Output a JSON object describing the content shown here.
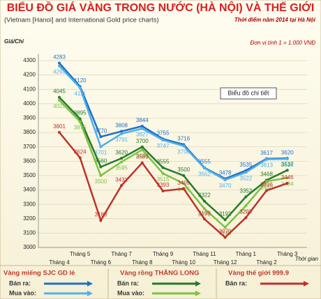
{
  "chart_data": {
    "type": "line",
    "title": "BIỂU ĐỒ GIÁ VÀNG TRONG NƯỚC (HÀ NỘI) VÀ THẾ GIỚI",
    "subtitle": "(Vietnam [Hanoi] and International Gold price charts)",
    "date_note": "Thời điểm năm 2014 tại Hà Nội",
    "unit_note": "Đơn vị tính 1 = 1.000 VNĐ",
    "button": "Biểu đồ chi tiết",
    "y_label": "Giá/Chỉ",
    "x_label": "Thời gian",
    "categories": [
      "Tháng 4",
      "Tháng 5",
      "Tháng 6",
      "Tháng 7",
      "Tháng 8",
      "Tháng 9",
      "Tháng 10",
      "Tháng 11",
      "Tháng 12",
      "Tháng 1",
      "Tháng 2",
      "Tháng 3"
    ],
    "ylim": [
      3000,
      4300
    ],
    "yticks": [
      3000,
      3100,
      3200,
      3300,
      3400,
      3500,
      3600,
      3700,
      3800,
      3900,
      4000,
      4100,
      4200,
      4300
    ],
    "grid": true,
    "groups": [
      {
        "title": "Vàng miếng SJC GD lẻ",
        "series": [
          {
            "name": "Bán ra:",
            "color": "#1f6fc8",
            "values": [
              4283,
              4120,
              3770,
              3808,
              3844,
              3755,
              3716,
              3555,
              3478,
              3535,
              3617,
              3620
            ]
          },
          {
            "name": "Mua vào:",
            "color": "#4fb0ea",
            "values": [
              4263,
              4111,
              3701,
              3791,
              3827,
              3747,
              3706,
              3552,
              3470,
              3522,
              3613,
              3616
            ]
          }
        ]
      },
      {
        "title": "Vàng rồng THĂNG LONG",
        "series": [
          {
            "name": "Bán ra:",
            "color": "#237a2b",
            "values": [
              4045,
              3895,
              3560,
              3620,
              3700,
              3555,
              3500,
              3322,
              3192,
              3352,
              3468,
              3537
            ]
          },
          {
            "name": "Mua vào:",
            "color": "#7cc242",
            "values": [
              4025,
              3875,
              3500,
              3595,
              3680,
              3515,
              3445,
              3270,
              3140,
              3290,
              3460,
              3484
            ]
          }
        ]
      },
      {
        "title": "Vàng thế giới 999.9",
        "series": [
          {
            "name": "Bán ra:",
            "color": "#c0302b",
            "values": [
              3801,
              3624,
              3188,
              3431,
              3589,
              3393,
              3409,
              3198,
              3070,
              3207,
              3396,
              3446
            ]
          }
        ]
      }
    ]
  }
}
